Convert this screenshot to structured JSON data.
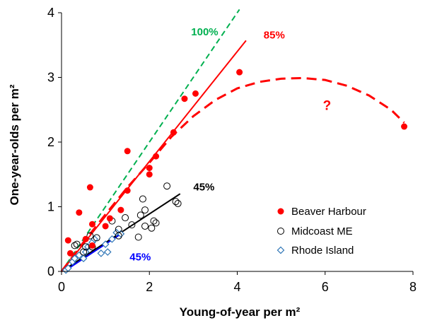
{
  "chart_data": {
    "type": "scatter",
    "xlabel": "Young-of-year per m²",
    "ylabel": "One-year-olds per m²",
    "xlim": [
      0,
      8
    ],
    "ylim": [
      0,
      4
    ],
    "xticks": [
      "0",
      "2",
      "4",
      "6",
      "8"
    ],
    "yticks": [
      "0",
      "1",
      "2",
      "3",
      "4"
    ],
    "grid": false,
    "legend": {
      "placement": "bottom-right",
      "entries": [
        "Beaver Harbour",
        "Midcoast ME",
        "Rhode Island"
      ]
    },
    "series": [
      {
        "name": "Beaver Harbour",
        "marker": "filled-circle",
        "color": "#ff0000",
        "points": [
          [
            0.15,
            0.48
          ],
          [
            0.2,
            0.28
          ],
          [
            0.4,
            0.91
          ],
          [
            0.55,
            0.5
          ],
          [
            0.65,
            1.3
          ],
          [
            0.7,
            0.73
          ],
          [
            0.7,
            0.4
          ],
          [
            1.0,
            0.7
          ],
          [
            1.1,
            0.82
          ],
          [
            1.35,
            0.95
          ],
          [
            1.5,
            1.86
          ],
          [
            1.5,
            1.25
          ],
          [
            2.0,
            1.6
          ],
          [
            2.0,
            1.5
          ],
          [
            2.15,
            1.78
          ],
          [
            2.55,
            2.15
          ],
          [
            2.8,
            2.67
          ],
          [
            3.05,
            2.75
          ],
          [
            4.05,
            3.08
          ],
          [
            7.8,
            2.24
          ]
        ]
      },
      {
        "name": "Midcoast ME",
        "marker": "open-circle",
        "color": "#000000",
        "points": [
          [
            0.3,
            0.4
          ],
          [
            0.35,
            0.42
          ],
          [
            0.5,
            0.3
          ],
          [
            0.55,
            0.38
          ],
          [
            0.65,
            0.55
          ],
          [
            0.7,
            0.38
          ],
          [
            0.8,
            0.52
          ],
          [
            1.15,
            0.78
          ],
          [
            1.3,
            0.65
          ],
          [
            1.3,
            0.55
          ],
          [
            1.45,
            0.83
          ],
          [
            1.6,
            0.72
          ],
          [
            1.75,
            0.53
          ],
          [
            1.8,
            0.87
          ],
          [
            1.85,
            1.12
          ],
          [
            1.9,
            0.95
          ],
          [
            1.9,
            0.7
          ],
          [
            2.05,
            0.67
          ],
          [
            2.1,
            0.78
          ],
          [
            2.15,
            0.75
          ],
          [
            2.4,
            1.32
          ],
          [
            2.6,
            1.08
          ],
          [
            2.65,
            1.05
          ]
        ]
      },
      {
        "name": "Rhode Island",
        "marker": "open-diamond",
        "color": "#2e75b6",
        "points": [
          [
            0.1,
            0.02
          ],
          [
            0.15,
            0.05
          ],
          [
            0.25,
            0.15
          ],
          [
            0.3,
            0.2
          ],
          [
            0.4,
            0.25
          ],
          [
            0.5,
            0.2
          ],
          [
            0.55,
            0.3
          ],
          [
            0.6,
            0.38
          ],
          [
            0.7,
            0.45
          ],
          [
            0.75,
            0.5
          ],
          [
            0.9,
            0.28
          ],
          [
            1.0,
            0.42
          ],
          [
            1.05,
            0.3
          ],
          [
            1.15,
            0.5
          ],
          [
            1.25,
            0.6
          ],
          [
            1.35,
            0.58
          ]
        ]
      }
    ],
    "lines": [
      {
        "label": "100%",
        "color": "#00b050",
        "dashed": true,
        "from": [
          0,
          0
        ],
        "to": [
          4.05,
          4.05
        ]
      },
      {
        "label": "85%",
        "color": "#ff0000",
        "dashed": false,
        "from": [
          0,
          0
        ],
        "to": [
          4.2,
          3.57
        ]
      },
      {
        "label": "45%",
        "color": "#000000",
        "dashed": false,
        "from": [
          0,
          0
        ],
        "to": [
          2.7,
          1.2
        ]
      },
      {
        "label": "45%",
        "color": "#0000ff",
        "dashed": false,
        "from": [
          0.1,
          0.02
        ],
        "to": [
          1.4,
          0.6
        ]
      }
    ],
    "curve": {
      "color": "#ff0000",
      "dashed": true,
      "points": [
        [
          0,
          0
        ],
        [
          0.5,
          0.45
        ],
        [
          1,
          0.88
        ],
        [
          1.5,
          1.3
        ],
        [
          2,
          1.68
        ],
        [
          2.5,
          2.08
        ],
        [
          3,
          2.4
        ],
        [
          3.5,
          2.65
        ],
        [
          4,
          2.83
        ],
        [
          4.5,
          2.93
        ],
        [
          5,
          2.98
        ],
        [
          5.5,
          2.99
        ],
        [
          6,
          2.96
        ],
        [
          6.5,
          2.87
        ],
        [
          7,
          2.72
        ],
        [
          7.5,
          2.5
        ],
        [
          7.8,
          2.3
        ]
      ]
    },
    "annotations": [
      {
        "text": "100%",
        "color": "#00b050",
        "x": 2.95,
        "y": 3.65
      },
      {
        "text": "85%",
        "color": "#ff0000",
        "x": 4.6,
        "y": 3.6
      },
      {
        "text": "45%",
        "color": "#000000",
        "x": 3.0,
        "y": 1.25
      },
      {
        "text": "45%",
        "color": "#0000ff",
        "x": 1.55,
        "y": 0.17
      },
      {
        "text": "?",
        "color": "#ff0000",
        "x": 5.95,
        "y": 2.5
      }
    ]
  }
}
